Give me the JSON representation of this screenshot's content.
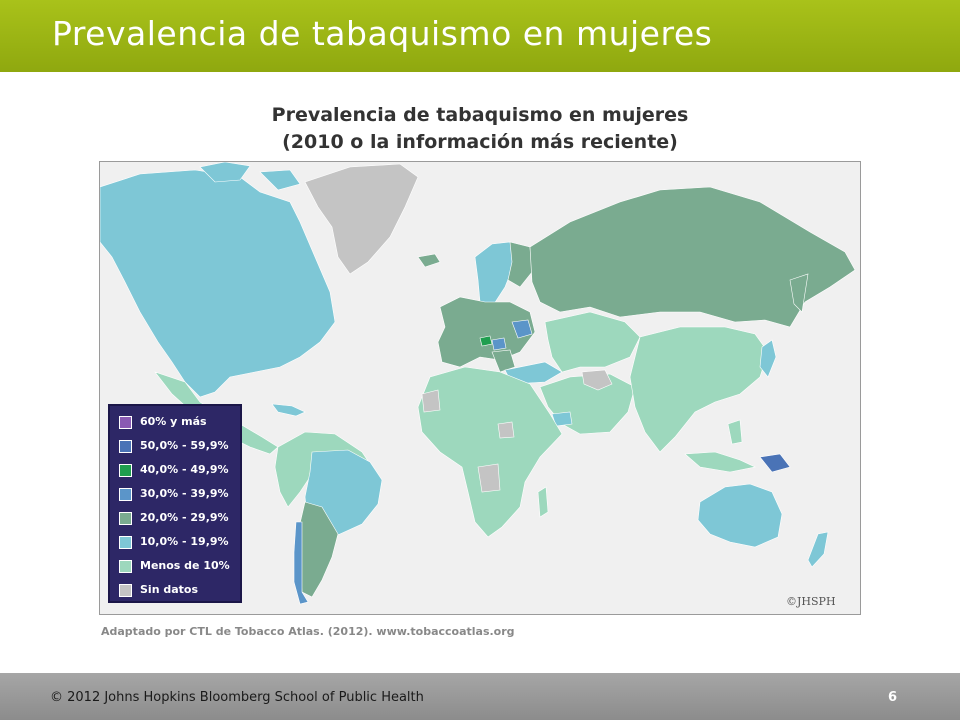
{
  "header": {
    "title": "Prevalencia de tabaquismo en mujeres"
  },
  "map": {
    "title_line1": "Prevalencia de tabaquismo en mujeres",
    "title_line2": "(2010 o la información más reciente)",
    "watermark": "©JHSPH",
    "colors": {
      "ocean": "#f0f0f0",
      "no_data": "#c4c4c4",
      "less_10": "#9dd8bd",
      "10_19": "#7ec7d6",
      "20_29": "#7aab90",
      "30_39": "#5b95c9",
      "40_49": "#1f9e4f",
      "50_59": "#4a73b6",
      "60_plus": "#8a5ab3"
    }
  },
  "legend": {
    "items": [
      {
        "label": "60% y más",
        "color": "#8a5ab3"
      },
      {
        "label": "50,0% - 59,9%",
        "color": "#4a73b6"
      },
      {
        "label": "40,0% - 49,9%",
        "color": "#1f9e4f"
      },
      {
        "label": "30,0% - 39,9%",
        "color": "#5b95c9"
      },
      {
        "label": "20,0% - 29,9%",
        "color": "#7aab90"
      },
      {
        "label": "10,0% - 19,9%",
        "color": "#7ec7d6"
      },
      {
        "label": "Menos de 10%",
        "color": "#9dd8bd"
      },
      {
        "label": "Sin datos",
        "color": "#c4c4c4"
      }
    ]
  },
  "source": "Adaptado por CTL de Tobacco Atlas. (2012). www.tobaccoatlas.org",
  "footer": {
    "copyright": "© 2012  Johns Hopkins Bloomberg School of Public Health",
    "page_number": "6"
  }
}
